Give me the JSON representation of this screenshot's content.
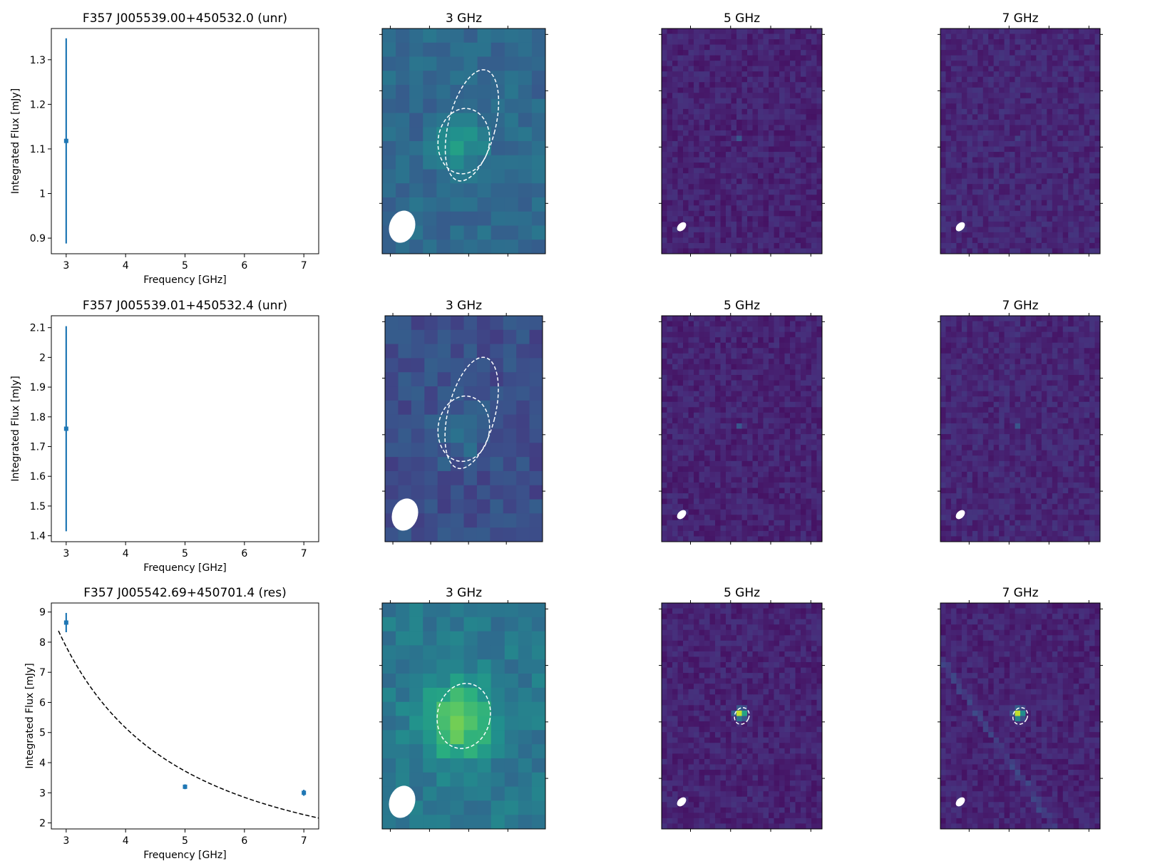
{
  "chart_data": [
    {
      "type": "scatter",
      "title": "F357 J005539.00+450532.0 (unr)",
      "xlabel": "Frequency [GHz]",
      "ylabel": "Integrated Flux [mJy]",
      "xlim": [
        2.75,
        7.25
      ],
      "ylim": [
        0.865,
        1.37
      ],
      "xticks": [
        3,
        4,
        5,
        6,
        7
      ],
      "yticks": [
        0.9,
        1.0,
        1.1,
        1.2,
        1.3
      ],
      "points": [
        {
          "x": 3,
          "y": 1.118,
          "yerr_low": 0.23,
          "yerr_high": 0.23
        }
      ],
      "fit_curve": null
    },
    {
      "type": "image",
      "title": "3 GHz",
      "colormap": "viridis",
      "base_level": 0.34,
      "source_peak": 0.55,
      "source_ellipses": 2,
      "beam": "large"
    },
    {
      "type": "image",
      "title": "5 GHz",
      "colormap": "viridis",
      "base_level": 0.1,
      "source_peak": 0.3,
      "source_ellipses": 0,
      "beam": "small"
    },
    {
      "type": "image",
      "title": "7 GHz",
      "colormap": "viridis",
      "base_level": 0.11,
      "source_peak": 0.25,
      "source_ellipses": 0,
      "beam": "small"
    },
    {
      "type": "scatter",
      "title": "F357 J005539.01+450532.4 (unr)",
      "xlabel": "Frequency [GHz]",
      "ylabel": "Integrated Flux [mJy]",
      "xlim": [
        2.75,
        7.25
      ],
      "ylim": [
        1.38,
        2.14
      ],
      "xticks": [
        3,
        4,
        5,
        6,
        7
      ],
      "yticks": [
        1.4,
        1.5,
        1.6,
        1.7,
        1.8,
        1.9,
        2.0,
        2.1
      ],
      "points": [
        {
          "x": 3,
          "y": 1.76,
          "yerr_low": 0.345,
          "yerr_high": 0.345
        }
      ],
      "fit_curve": null
    },
    {
      "type": "image",
      "title": "3 GHz",
      "colormap": "viridis",
      "base_level": 0.24,
      "source_peak": 0.37,
      "source_ellipses": 2,
      "beam": "large"
    },
    {
      "type": "image",
      "title": "5 GHz",
      "colormap": "viridis",
      "base_level": 0.1,
      "source_peak": 0.3,
      "source_ellipses": 0,
      "beam": "small"
    },
    {
      "type": "image",
      "title": "7 GHz",
      "colormap": "viridis",
      "base_level": 0.11,
      "source_peak": 0.25,
      "source_ellipses": 0,
      "beam": "small"
    },
    {
      "type": "scatter",
      "title": "F357 J005542.69+450701.4 (res)",
      "xlabel": "Frequency [GHz]",
      "ylabel": "Integrated Flux [mJy]",
      "xlim": [
        2.75,
        7.25
      ],
      "ylim": [
        1.8,
        9.3
      ],
      "xticks": [
        3,
        4,
        5,
        6,
        7
      ],
      "yticks": [
        2,
        3,
        4,
        5,
        6,
        7,
        8,
        9
      ],
      "points": [
        {
          "x": 3,
          "y": 8.65,
          "yerr_low": 0.32,
          "yerr_high": 0.32
        },
        {
          "x": 5,
          "y": 3.2,
          "yerr_low": 0.08,
          "yerr_high": 0.08
        },
        {
          "x": 7,
          "y": 3.0,
          "yerr_low": 0.1,
          "yerr_high": 0.1
        }
      ],
      "fit_curve": {
        "style": "dashed",
        "x_start": 2.87,
        "x_end": 7.25,
        "y_at_3": 7.85,
        "y_at_5": 3.72,
        "y_at_7": 2.4
      }
    },
    {
      "type": "image",
      "title": "3 GHz",
      "colormap": "viridis",
      "base_level": 0.4,
      "source_peak": 0.82,
      "source_ellipses": 1,
      "beam": "large"
    },
    {
      "type": "image",
      "title": "5 GHz",
      "colormap": "viridis",
      "base_level": 0.1,
      "source_peak": 1.0,
      "source_ellipses": 1,
      "beam": "small"
    },
    {
      "type": "image",
      "title": "7 GHz",
      "colormap": "viridis",
      "base_level": 0.1,
      "source_peak": 1.0,
      "source_ellipses": 1,
      "beam": "small",
      "streak": true
    }
  ]
}
